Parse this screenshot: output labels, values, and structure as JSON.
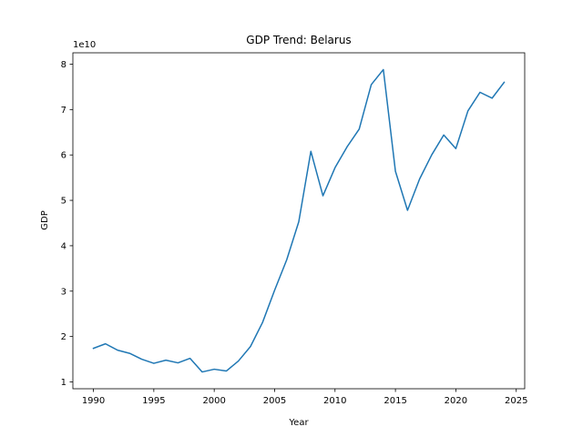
{
  "chart_data": {
    "type": "line",
    "title": "GDP Trend: Belarus",
    "xlabel": "Year",
    "ylabel": "GDP",
    "y_offset_label": "1e10",
    "grid": false,
    "legend": "none",
    "xlim": [
      1988.3,
      2025.7
    ],
    "ylim": [
      8500000000.0,
      82500000000.0
    ],
    "x_ticks": [
      1990,
      1995,
      2000,
      2005,
      2010,
      2015,
      2020,
      2025
    ],
    "x_tick_labels": [
      "1990",
      "1995",
      "2000",
      "2005",
      "2010",
      "2015",
      "2020",
      "2025"
    ],
    "y_ticks": [
      10000000000.0,
      20000000000.0,
      30000000000.0,
      40000000000.0,
      50000000000.0,
      60000000000.0,
      70000000000.0,
      80000000000.0
    ],
    "y_tick_labels": [
      "1",
      "2",
      "3",
      "4",
      "5",
      "6",
      "7",
      "8"
    ],
    "series": [
      {
        "color": "#1f77b4",
        "x": [
          1990,
          1991,
          1992,
          1993,
          1994,
          1995,
          1996,
          1997,
          1998,
          1999,
          2000,
          2001,
          2002,
          2003,
          2004,
          2005,
          2006,
          2007,
          2008,
          2009,
          2010,
          2011,
          2012,
          2013,
          2014,
          2015,
          2016,
          2017,
          2018,
          2019,
          2020,
          2021,
          2022,
          2023,
          2024
        ],
        "y": [
          17400000000.0,
          18400000000.0,
          17000000000.0,
          16300000000.0,
          15000000000.0,
          14100000000.0,
          14800000000.0,
          14200000000.0,
          15200000000.0,
          12200000000.0,
          12800000000.0,
          12400000000.0,
          14600000000.0,
          17800000000.0,
          23100000000.0,
          30200000000.0,
          36900000000.0,
          45300000000.0,
          60800000000.0,
          51000000000.0,
          57200000000.0,
          61800000000.0,
          65700000000.0,
          75500000000.0,
          78800000000.0,
          56400000000.0,
          47800000000.0,
          54700000000.0,
          60000000000.0,
          64400000000.0,
          61400000000.0,
          69700000000.0,
          73800000000.0,
          72500000000.0,
          76000000000.0
        ]
      }
    ]
  }
}
